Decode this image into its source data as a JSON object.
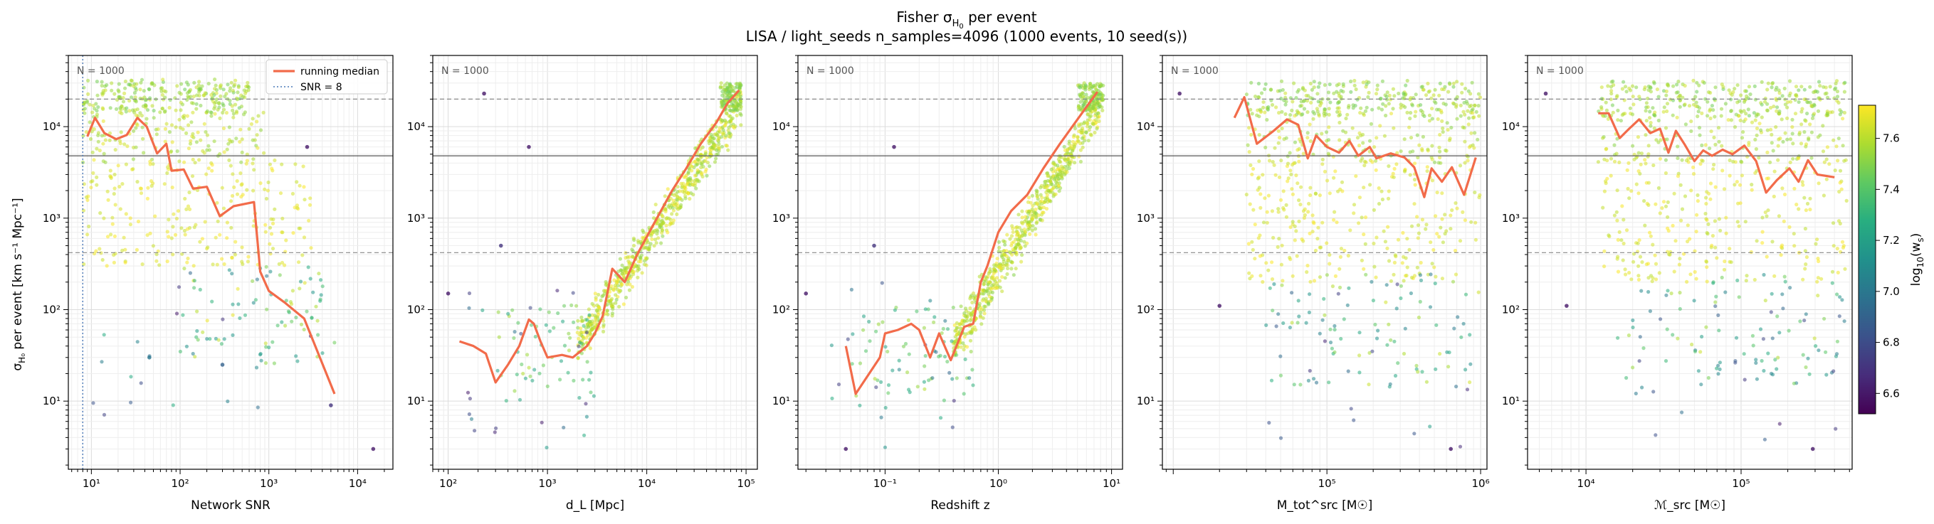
{
  "figure": {
    "title_prefix": "Fisher σ",
    "title_sub": "H",
    "title_subsub": "0",
    "title_suffix": " per event",
    "subtitle": "LISA / light_seeds  n_samples=4096  (1000 events, 10 seed(s))"
  },
  "colors": {
    "median": "#f26b4a",
    "snr_line": "#4a78b8",
    "hline_solid": "#666666",
    "hline_dashed": "#888888",
    "grid": "#e6e6e6"
  },
  "legend": {
    "median_label": "running median",
    "snr_label": "SNR = 8"
  },
  "colorbar": {
    "label": "log₁₀(w_s)",
    "range": [
      6.52,
      7.73
    ],
    "ticks": [
      6.6,
      6.8,
      7.0,
      7.2,
      7.4,
      7.6
    ],
    "colormap": "viridis"
  },
  "ylabel": "σ_H₀ per event [km s⁻¹ Mpc⁻¹]",
  "chart_data": [
    {
      "type": "scatter",
      "annotation": "N = 1000",
      "xlabel": "Network SNR",
      "xlog": true,
      "xlim": [
        5.5,
        25000
      ],
      "ylog": true,
      "ylim": [
        1.8,
        60000
      ],
      "xticks": [
        10,
        100,
        1000,
        10000
      ],
      "xticklabels": [
        "10¹",
        "10²",
        "10³",
        "10⁴"
      ],
      "yticks": [
        10,
        100,
        1000,
        10000
      ],
      "yticklabels": [
        "10¹",
        "10²",
        "10³",
        "10⁴"
      ],
      "hlines": [
        {
          "y": 20000,
          "style": "dashed"
        },
        {
          "y": 4800,
          "style": "solid"
        },
        {
          "y": 420,
          "style": "dashed"
        }
      ],
      "vline": 8,
      "median": [
        [
          9,
          7800
        ],
        [
          11,
          12500
        ],
        [
          14,
          8500
        ],
        [
          19,
          7300
        ],
        [
          25,
          8100
        ],
        [
          33,
          12500
        ],
        [
          42,
          10000
        ],
        [
          55,
          5100
        ],
        [
          70,
          6500
        ],
        [
          80,
          3300
        ],
        [
          110,
          3400
        ],
        [
          140,
          2100
        ],
        [
          200,
          2200
        ],
        [
          280,
          1050
        ],
        [
          400,
          1350
        ],
        [
          680,
          1500
        ],
        [
          800,
          260
        ],
        [
          1000,
          160
        ],
        [
          1500,
          120
        ],
        [
          2500,
          80
        ],
        [
          5500,
          12
        ]
      ],
      "clouds": [
        {
          "n": 240,
          "x": [
            8,
            600
          ],
          "y": [
            14000,
            33000
          ],
          "c": [
            7.45,
            7.65
          ]
        },
        {
          "n": 140,
          "x": [
            8,
            1000
          ],
          "y": [
            4000,
            15000
          ],
          "c": [
            7.52,
            7.7
          ]
        },
        {
          "n": 230,
          "x": [
            8,
            3000
          ],
          "y": [
            300,
            4500
          ],
          "c": [
            7.62,
            7.73
          ]
        },
        {
          "n": 80,
          "x": [
            100,
            6000
          ],
          "y": [
            25,
            300
          ],
          "c": [
            7.1,
            7.7
          ]
        },
        {
          "n": 26,
          "x": [
            10,
            3000
          ],
          "y": [
            7,
            300
          ],
          "c": [
            6.6,
            7.3
          ]
        }
      ],
      "points": [
        [
          2700,
          6000,
          6.6
        ],
        [
          15000,
          3,
          6.6
        ],
        [
          5000,
          9,
          6.7
        ],
        [
          300,
          25,
          6.9
        ],
        [
          45,
          30,
          7.0
        ]
      ]
    },
    {
      "type": "scatter",
      "annotation": "N = 1000",
      "xlabel": "d_L [Mpc]",
      "xlog": true,
      "xlim": [
        70,
        130000
      ],
      "ylog": true,
      "ylim": [
        1.8,
        60000
      ],
      "xticks": [
        100,
        1000,
        10000,
        100000
      ],
      "xticklabels": [
        "10²",
        "10³",
        "10⁴",
        "10⁵"
      ],
      "yticks": [
        10,
        100,
        1000,
        10000
      ],
      "yticklabels": [
        "10¹",
        "10²",
        "10³",
        "10⁴"
      ],
      "hlines": [
        {
          "y": 20000,
          "style": "dashed"
        },
        {
          "y": 4800,
          "style": "solid"
        },
        {
          "y": 420,
          "style": "dashed"
        }
      ],
      "median": [
        [
          130,
          45
        ],
        [
          180,
          40
        ],
        [
          240,
          33
        ],
        [
          300,
          16
        ],
        [
          400,
          25
        ],
        [
          520,
          40
        ],
        [
          650,
          78
        ],
        [
          730,
          70
        ],
        [
          850,
          45
        ],
        [
          1000,
          30
        ],
        [
          1400,
          32
        ],
        [
          1800,
          30
        ],
        [
          2500,
          40
        ],
        [
          3000,
          55
        ],
        [
          3600,
          85
        ],
        [
          4500,
          280
        ],
        [
          6000,
          200
        ],
        [
          8000,
          400
        ],
        [
          12000,
          900
        ],
        [
          18000,
          2000
        ],
        [
          25000,
          3500
        ],
        [
          35000,
          6500
        ],
        [
          50000,
          11000
        ],
        [
          65000,
          18000
        ],
        [
          85000,
          25000
        ]
      ],
      "clouds": [
        {
          "n": 650,
          "band": true,
          "x": [
            2000,
            90000
          ],
          "y0": [
            40,
            18000
          ],
          "spread": 0.35,
          "c": [
            7.5,
            7.73
          ]
        },
        {
          "n": 120,
          "x": [
            55000,
            90000
          ],
          "y": [
            15000,
            30000
          ],
          "c": [
            7.45,
            7.6
          ]
        },
        {
          "n": 60,
          "x": [
            300,
            3000
          ],
          "y": [
            10,
            120
          ],
          "c": [
            7.2,
            7.6
          ]
        },
        {
          "n": 26,
          "x": [
            150,
            3000
          ],
          "y": [
            3,
            200
          ],
          "c": [
            6.6,
            7.3
          ]
        }
      ],
      "points": [
        [
          230,
          23000,
          6.6
        ],
        [
          650,
          6000,
          6.6
        ],
        [
          340,
          500,
          6.7
        ],
        [
          100,
          150,
          6.6
        ]
      ]
    },
    {
      "type": "scatter",
      "annotation": "N = 1000",
      "xlabel": "Redshift z",
      "xlog": true,
      "xlim": [
        0.017,
        12.5
      ],
      "ylog": true,
      "ylim": [
        1.8,
        60000
      ],
      "xticks": [
        0.1,
        1,
        10
      ],
      "xticklabels": [
        "10⁻¹",
        "10⁰",
        "10¹"
      ],
      "yticks": [
        10,
        100,
        1000,
        10000
      ],
      "yticklabels": [
        "10¹",
        "10²",
        "10³",
        "10⁴"
      ],
      "hlines": [
        {
          "y": 20000,
          "style": "dashed"
        },
        {
          "y": 4800,
          "style": "solid"
        },
        {
          "y": 420,
          "style": "dashed"
        }
      ],
      "median": [
        [
          0.045,
          40
        ],
        [
          0.055,
          12
        ],
        [
          0.09,
          30
        ],
        [
          0.1,
          55
        ],
        [
          0.13,
          60
        ],
        [
          0.17,
          70
        ],
        [
          0.2,
          60
        ],
        [
          0.25,
          30
        ],
        [
          0.3,
          55
        ],
        [
          0.38,
          28
        ],
        [
          0.5,
          65
        ],
        [
          0.6,
          70
        ],
        [
          0.7,
          200
        ],
        [
          0.8,
          300
        ],
        [
          1,
          700
        ],
        [
          1.3,
          1200
        ],
        [
          1.8,
          1800
        ],
        [
          2.5,
          3500
        ],
        [
          3.5,
          6500
        ],
        [
          5,
          12000
        ],
        [
          7.5,
          24000
        ]
      ],
      "clouds": [
        {
          "n": 650,
          "band": true,
          "x": [
            0.4,
            8
          ],
          "y0": [
            40,
            18000
          ],
          "spread": 0.35,
          "c": [
            7.5,
            7.73
          ]
        },
        {
          "n": 120,
          "x": [
            5,
            8.5
          ],
          "y": [
            15000,
            30000
          ],
          "c": [
            7.45,
            7.6
          ]
        },
        {
          "n": 60,
          "x": [
            0.05,
            0.6
          ],
          "y": [
            10,
            120
          ],
          "c": [
            7.2,
            7.6
          ]
        },
        {
          "n": 26,
          "x": [
            0.03,
            0.6
          ],
          "y": [
            3,
            200
          ],
          "c": [
            6.6,
            7.3
          ]
        }
      ],
      "points": [
        [
          0.12,
          6000,
          6.6
        ],
        [
          0.08,
          500,
          6.7
        ],
        [
          0.02,
          150,
          6.6
        ],
        [
          0.045,
          3,
          6.6
        ]
      ]
    },
    {
      "type": "scatter",
      "annotation": "N = 1000",
      "xlabel": "M_tot^src [M☉]",
      "xlog": true,
      "xlim": [
        8500,
        1100000
      ],
      "ylog": true,
      "ylim": [
        1.8,
        60000
      ],
      "xticks": [
        100000,
        1000000
      ],
      "xticklabels": [
        "10⁵",
        "10⁶"
      ],
      "yticks": [
        10,
        100,
        1000,
        10000
      ],
      "yticklabels": [
        "10¹",
        "10²",
        "10³",
        "10⁴"
      ],
      "hlines": [
        {
          "y": 20000,
          "style": "dashed"
        },
        {
          "y": 4800,
          "style": "solid"
        },
        {
          "y": 420,
          "style": "dashed"
        }
      ],
      "median": [
        [
          25000,
          12500
        ],
        [
          29000,
          21000
        ],
        [
          35000,
          6500
        ],
        [
          45000,
          9000
        ],
        [
          55000,
          12000
        ],
        [
          65000,
          10500
        ],
        [
          75000,
          4500
        ],
        [
          85000,
          8000
        ],
        [
          100000,
          6000
        ],
        [
          120000,
          5200
        ],
        [
          140000,
          7000
        ],
        [
          160000,
          4800
        ],
        [
          190000,
          6000
        ],
        [
          210000,
          4500
        ],
        [
          260000,
          5100
        ],
        [
          320000,
          4600
        ],
        [
          370000,
          3600
        ],
        [
          430000,
          1700
        ],
        [
          480000,
          3500
        ],
        [
          560000,
          2500
        ],
        [
          650000,
          3600
        ],
        [
          780000,
          1800
        ],
        [
          930000,
          4600
        ]
      ],
      "clouds": [
        {
          "n": 250,
          "x": [
            30000,
            1000000
          ],
          "y": [
            13000,
            32000
          ],
          "c": [
            7.45,
            7.65
          ]
        },
        {
          "n": 170,
          "x": [
            30000,
            1000000
          ],
          "y": [
            4000,
            15000
          ],
          "c": [
            7.5,
            7.7
          ]
        },
        {
          "n": 260,
          "x": [
            30000,
            1000000
          ],
          "y": [
            200,
            4500
          ],
          "c": [
            7.6,
            7.73
          ]
        },
        {
          "n": 90,
          "x": [
            40000,
            1000000
          ],
          "y": [
            15,
            250
          ],
          "c": [
            7.0,
            7.65
          ]
        },
        {
          "n": 26,
          "x": [
            40000,
            900000
          ],
          "y": [
            3,
            200
          ],
          "c": [
            6.6,
            7.2
          ]
        }
      ],
      "points": [
        [
          11000,
          23000,
          6.6
        ],
        [
          20000,
          110,
          6.6
        ],
        [
          640000,
          3,
          6.6
        ]
      ]
    },
    {
      "type": "scatter",
      "annotation": "N = 1000",
      "xlabel": "ℳ_src [M☉]",
      "xlog": true,
      "xlim": [
        4200,
        520000
      ],
      "ylog": true,
      "ylim": [
        1.8,
        60000
      ],
      "xticks": [
        10000,
        100000
      ],
      "xticklabels": [
        "10⁴",
        "10⁵"
      ],
      "yticks": [
        10,
        100,
        1000,
        10000
      ],
      "yticklabels": [
        "10¹",
        "10²",
        "10³",
        "10⁴"
      ],
      "hlines": [
        {
          "y": 20000,
          "style": "dashed"
        },
        {
          "y": 4800,
          "style": "solid"
        },
        {
          "y": 420,
          "style": "dashed"
        }
      ],
      "median": [
        [
          12000,
          14000
        ],
        [
          14000,
          14000
        ],
        [
          16500,
          7500
        ],
        [
          19000,
          9500
        ],
        [
          22000,
          12000
        ],
        [
          26000,
          8500
        ],
        [
          30000,
          9500
        ],
        [
          34000,
          5200
        ],
        [
          38000,
          9000
        ],
        [
          43000,
          6500
        ],
        [
          50000,
          4200
        ],
        [
          57000,
          5500
        ],
        [
          65000,
          4800
        ],
        [
          76000,
          5600
        ],
        [
          88000,
          5000
        ],
        [
          105000,
          6200
        ],
        [
          125000,
          4200
        ],
        [
          145000,
          1900
        ],
        [
          170000,
          2600
        ],
        [
          205000,
          3500
        ],
        [
          235000,
          2500
        ],
        [
          270000,
          4300
        ],
        [
          310000,
          3000
        ],
        [
          400000,
          2800
        ]
      ],
      "clouds": [
        {
          "n": 250,
          "x": [
            12000,
            480000
          ],
          "y": [
            13000,
            32000
          ],
          "c": [
            7.45,
            7.65
          ]
        },
        {
          "n": 170,
          "x": [
            12000,
            480000
          ],
          "y": [
            4000,
            15000
          ],
          "c": [
            7.5,
            7.7
          ]
        },
        {
          "n": 260,
          "x": [
            12000,
            480000
          ],
          "y": [
            200,
            4500
          ],
          "c": [
            7.6,
            7.73
          ]
        },
        {
          "n": 90,
          "x": [
            15000,
            480000
          ],
          "y": [
            15,
            250
          ],
          "c": [
            7.0,
            7.65
          ]
        },
        {
          "n": 26,
          "x": [
            15000,
            450000
          ],
          "y": [
            3,
            200
          ],
          "c": [
            6.6,
            7.2
          ]
        }
      ],
      "points": [
        [
          5500,
          23000,
          6.6
        ],
        [
          7500,
          110,
          6.6
        ],
        [
          290000,
          3,
          6.6
        ]
      ]
    }
  ]
}
